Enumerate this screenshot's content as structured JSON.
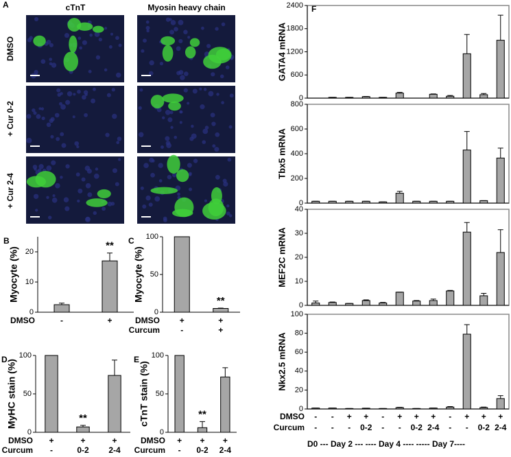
{
  "panel_a": {
    "panel": "A",
    "columns": [
      "cTnT",
      "Myosin heavy chain"
    ],
    "rows": [
      "DMSO",
      "+ Cur 0-2",
      "+ Cur 2-4"
    ]
  },
  "chart_data": [
    {
      "type": "bar",
      "panel": "B",
      "ylabel": "Myocyte (%)",
      "ylim": [
        0,
        25
      ],
      "yticks": [
        0,
        10,
        20
      ],
      "values": [
        2.5,
        17
      ],
      "errors": [
        0.5,
        2.6
      ],
      "bar_labels": [
        null,
        "**"
      ],
      "color": "#a6a6a6",
      "rows": [
        {
          "name": "DMSO",
          "labels": [
            "-",
            "+"
          ]
        }
      ]
    },
    {
      "type": "bar",
      "panel": "C",
      "ylabel": "Myocyte (%)",
      "ylim": [
        0,
        100
      ],
      "yticks": [
        0,
        50,
        100
      ],
      "values": [
        100,
        5
      ],
      "errors": [
        0,
        0.5
      ],
      "bar_labels": [
        null,
        "**"
      ],
      "color": "#a6a6a6",
      "rows": [
        {
          "name": "DMSO",
          "labels": [
            "+",
            "+"
          ]
        },
        {
          "name": "Curcum",
          "labels": [
            "-",
            "+"
          ]
        }
      ]
    },
    {
      "type": "bar",
      "panel": "D",
      "ylabel": "MyHC stain (%)",
      "ylim": [
        0,
        100
      ],
      "yticks": [
        0,
        50,
        100
      ],
      "values": [
        100,
        7,
        74
      ],
      "errors": [
        0,
        2,
        20
      ],
      "bar_labels": [
        null,
        "**",
        null
      ],
      "color": "#a6a6a6",
      "rows": [
        {
          "name": "DMSO",
          "labels": [
            "+",
            "+",
            "+"
          ]
        },
        {
          "name": "Curcum",
          "labels": [
            "-",
            "0-2",
            "2-4"
          ]
        }
      ]
    },
    {
      "type": "bar",
      "panel": "E",
      "ylabel": "cTnT stain (%)",
      "ylim": [
        0,
        100
      ],
      "yticks": [
        0,
        50,
        100
      ],
      "values": [
        100,
        6,
        72
      ],
      "errors": [
        0,
        8,
        12
      ],
      "bar_labels": [
        null,
        "**",
        null
      ],
      "color": "#a6a6a6",
      "rows": [
        {
          "name": "DMSO",
          "labels": [
            "+",
            "+",
            "+"
          ]
        },
        {
          "name": "Curcum",
          "labels": [
            "-",
            "0-2",
            "2-4"
          ]
        }
      ]
    },
    {
      "type": "bar",
      "panel": "F",
      "ylabel": "GATA4 mRNA",
      "ylim": [
        0,
        2400
      ],
      "yticks": [
        0,
        600,
        1200,
        1800,
        2400
      ],
      "values": [
        0,
        20,
        20,
        40,
        20,
        130,
        0,
        100,
        50,
        1150,
        90,
        1500
      ],
      "errors": [
        0,
        0,
        0,
        5,
        0,
        20,
        0,
        10,
        20,
        500,
        30,
        650
      ],
      "color": "#a6a6a6"
    },
    {
      "type": "bar",
      "ylabel": "Tbx5 mRNA",
      "ylim": [
        0,
        800
      ],
      "yticks": [
        0,
        200,
        400,
        600,
        800
      ],
      "values": [
        15,
        15,
        15,
        15,
        10,
        80,
        15,
        15,
        15,
        430,
        20,
        365
      ],
      "errors": [
        0,
        0,
        0,
        0,
        0,
        15,
        0,
        0,
        0,
        150,
        0,
        80
      ],
      "color": "#a6a6a6"
    },
    {
      "type": "bar",
      "ylabel": "MEF2C mRNA",
      "ylim": [
        0,
        40
      ],
      "yticks": [
        0,
        10,
        20,
        30,
        40
      ],
      "values": [
        1,
        1.2,
        0.8,
        2,
        1,
        5.5,
        1.8,
        2,
        6,
        30.5,
        4,
        22
      ],
      "errors": [
        0.8,
        0.2,
        0,
        0.3,
        0.2,
        0,
        0.2,
        0.6,
        0.2,
        4,
        1,
        9.5
      ],
      "color": "#a6a6a6"
    },
    {
      "type": "bar",
      "ylabel": "Nkx2.5 mRNA",
      "ylim": [
        0,
        100
      ],
      "yticks": [
        0,
        20,
        40,
        60,
        80,
        100
      ],
      "values": [
        1,
        1,
        0.5,
        0.8,
        0.5,
        1.5,
        0.5,
        1,
        2,
        79,
        1.5,
        11
      ],
      "errors": [
        0,
        0,
        0,
        0,
        0,
        0.3,
        0,
        0,
        0.5,
        10,
        0.5,
        3
      ],
      "color": "#a6a6a6",
      "rows": [
        {
          "name": "DMSO",
          "labels": [
            "-",
            "-",
            "+",
            "+",
            "-",
            "+",
            "+",
            "+",
            "-",
            "+",
            "+",
            "+"
          ]
        },
        {
          "name": "Curcum",
          "labels": [
            "-",
            "-",
            "-",
            "0-2",
            "-",
            "-",
            "0-2",
            "2-4",
            "-",
            "-",
            "0-2",
            "2-4"
          ]
        }
      ]
    }
  ],
  "footer": "D0 --- Day 2 --- ---- Day 4 ---- ----- Day 7----"
}
